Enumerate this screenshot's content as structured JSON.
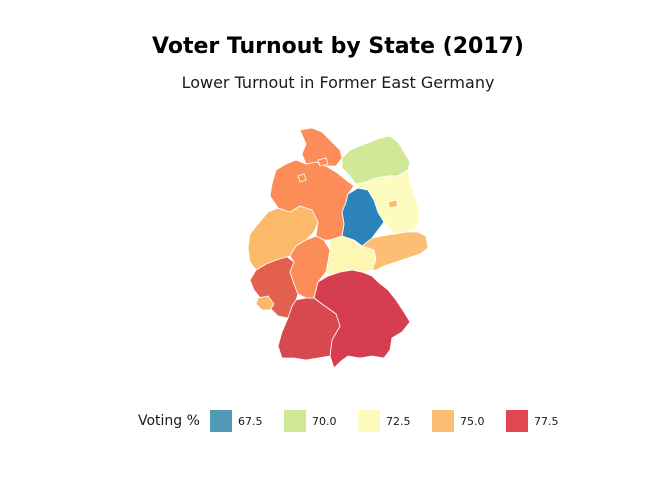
{
  "title": "Voter Turnout by State (2017)",
  "subtitle": "Lower Turnout in Former East Germany",
  "legend": {
    "title": "Voting %",
    "items": [
      {
        "label": "67.5",
        "color": "#5299b6"
      },
      {
        "label": "70.0",
        "color": "#cfe895"
      },
      {
        "label": "72.5",
        "color": "#fefbbf"
      },
      {
        "label": "75.0",
        "color": "#fdbe74"
      },
      {
        "label": "77.5",
        "color": "#e0474f"
      }
    ]
  },
  "map": {
    "region": "Germany",
    "border_color": "#ffffff",
    "states": [
      {
        "name": "Schleswig-Holstein",
        "color": "#fc8d59"
      },
      {
        "name": "Mecklenburg-Vorpommern",
        "color": "#d1e896"
      },
      {
        "name": "Niedersachsen",
        "color": "#fc8d59"
      },
      {
        "name": "Bremen",
        "color": "#fc8d59"
      },
      {
        "name": "Hamburg",
        "color": "#fc8d59"
      },
      {
        "name": "Brandenburg",
        "color": "#fefbbf"
      },
      {
        "name": "Berlin",
        "color": "#fdb96a"
      },
      {
        "name": "Sachsen-Anhalt",
        "color": "#2b83ba"
      },
      {
        "name": "Nordrhein-Westfalen",
        "color": "#fdb96a"
      },
      {
        "name": "Hessen",
        "color": "#fc8d59"
      },
      {
        "name": "Thüringen",
        "color": "#fef6b3"
      },
      {
        "name": "Sachsen",
        "color": "#fdbe74"
      },
      {
        "name": "Rheinland-Pfalz",
        "color": "#e4604e"
      },
      {
        "name": "Saarland",
        "color": "#fdb96a"
      },
      {
        "name": "Bayern",
        "color": "#d53e4f"
      },
      {
        "name": "Baden-Württemberg",
        "color": "#d8484f"
      }
    ]
  }
}
